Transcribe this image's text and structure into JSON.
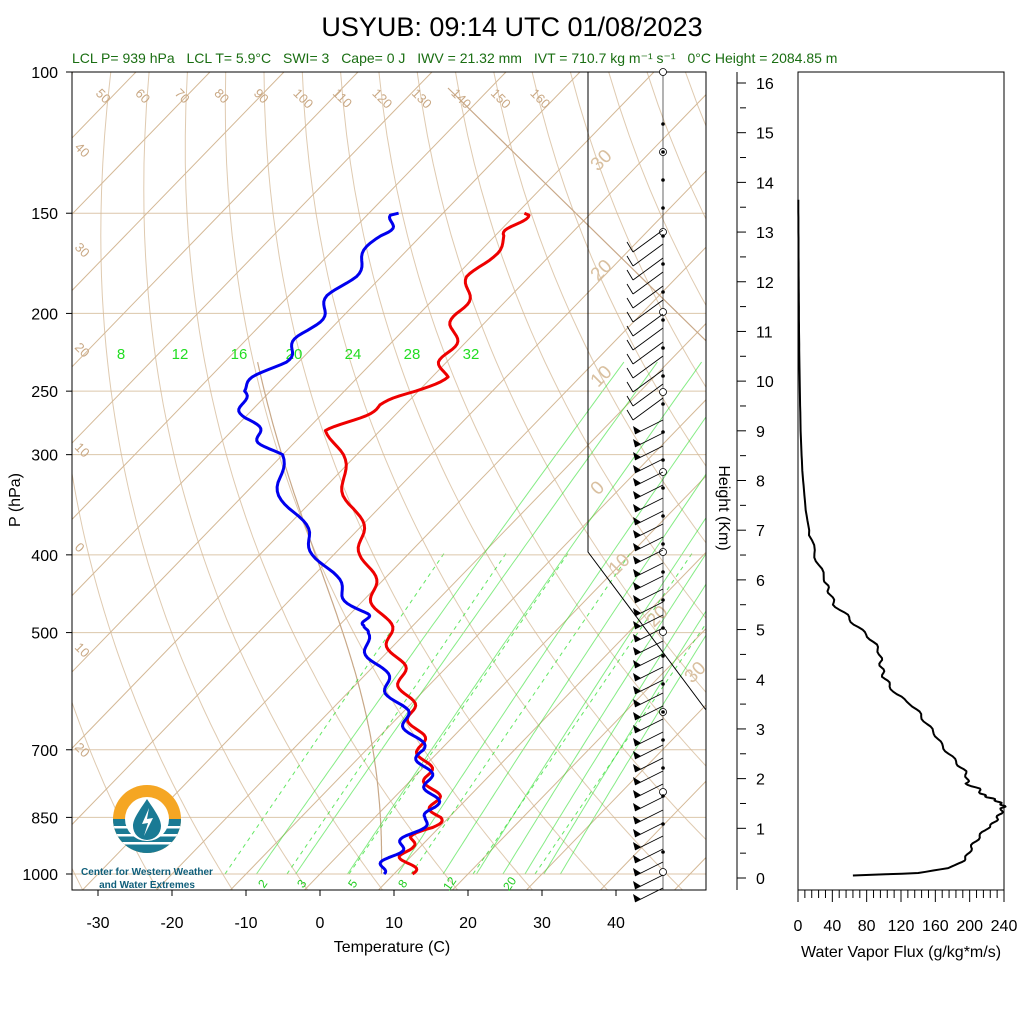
{
  "title": "USYUB: 09:14 UTC 01/08/2023",
  "subtitle": {
    "lcl_p": "LCL P= 939 hPa",
    "lcl_t": "LCL T= 5.9°C",
    "swi": "SWI= 3",
    "cape": "Cape= 0 J",
    "iwv": "IWV = 21.32 mm",
    "ivt": "IVT = 710.7 kg m⁻¹ s⁻¹",
    "zero_c": "0°C Height = 2084.85 m"
  },
  "logo": {
    "line1": "Center for Western Weather",
    "line2": "and Water Extremes"
  },
  "colors": {
    "temperature": "#ee0000",
    "dewpoint": "#0000ee",
    "isotherm": "#d4b896",
    "mixing_ratio": "#22dd22",
    "flux": "#000000",
    "logo_orange": "#f5a623",
    "logo_teal": "#1a7a94"
  },
  "chart_data": [
    {
      "type": "line",
      "name": "skew-t",
      "xlabel": "Temperature (C)",
      "ylabel": "P (hPa)",
      "x_ticks": [
        "-30",
        "-20",
        "-10",
        "0",
        "10",
        "20",
        "30",
        "40"
      ],
      "y_ticks": [
        "100",
        "150",
        "200",
        "250",
        "300",
        "400",
        "500",
        "700",
        "850",
        "1000"
      ],
      "isotherm_labels": [
        "50",
        "60",
        "70",
        "80",
        "90",
        "100",
        "110",
        "120",
        "130",
        "140",
        "150",
        "160",
        "40",
        "30",
        "20",
        "10",
        "0",
        "10",
        "20"
      ],
      "mixing_ratio_top_labels": [
        "8",
        "12",
        "16",
        "20",
        "24",
        "28",
        "32"
      ],
      "mixing_ratio_bottom_labels": [
        "2",
        "3",
        "5",
        "8",
        "12",
        "20"
      ],
      "dry_adiabat_labels": [
        "30",
        "20",
        "10",
        "0",
        "10",
        "20",
        "30"
      ],
      "series": [
        {
          "name": "Temperature",
          "p": [
            1000,
            975,
            950,
            925,
            900,
            875,
            850,
            825,
            800,
            775,
            750,
            725,
            700,
            675,
            650,
            625,
            600,
            575,
            550,
            525,
            500,
            475,
            450,
            425,
            400,
            375,
            350,
            325,
            300,
            280,
            270,
            260,
            250,
            240,
            230,
            220,
            210,
            200,
            190,
            180,
            170,
            160,
            155,
            150
          ],
          "t": [
            12.5,
            10.8,
            9.2,
            8.2,
            8.0,
            9.0,
            8.5,
            6.8,
            5.2,
            3.4,
            1.4,
            -0.6,
            -2.4,
            -4.6,
            -6.8,
            -9.2,
            -11.6,
            -14.0,
            -16.6,
            -19.4,
            -22.4,
            -25.6,
            -29.0,
            -32.4,
            -35.6,
            -39.4,
            -43.4,
            -47.8,
            -52.6,
            -56.5,
            -55.0,
            -53.2,
            -50.0,
            -48.6,
            -50.2,
            -51.6,
            -53.0,
            -54.8,
            -56.2,
            -57.6,
            -58.2,
            -58.4,
            -58.6,
            -59.0
          ]
        },
        {
          "name": "Dewpoint",
          "p": [
            1000,
            975,
            950,
            925,
            900,
            875,
            850,
            825,
            800,
            775,
            750,
            725,
            700,
            675,
            650,
            625,
            600,
            575,
            550,
            525,
            500,
            490,
            480,
            470,
            450,
            425,
            400,
            375,
            350,
            325,
            300,
            290,
            280,
            270,
            260,
            250,
            240,
            230,
            220,
            210,
            200,
            190,
            180,
            170,
            160,
            155,
            150
          ],
          "t": [
            7.8,
            7.6,
            7.4,
            7.2,
            7.2,
            7.2,
            7.4,
            6.6,
            5.0,
            3.2,
            1.2,
            -0.8,
            -2.6,
            -5.2,
            -7.8,
            -10.4,
            -13.4,
            -16.4,
            -19.4,
            -22.8,
            -26.0,
            -25.8,
            -27.6,
            -28.8,
            -33.0,
            -37.6,
            -42.0,
            -46.8,
            -52.0,
            -56.6,
            -60.8,
            -64.0,
            -66.8,
            -69.6,
            -71.8,
            -74.2,
            -73.4,
            -72.4,
            -72.6,
            -72.8,
            -73.4,
            -74.0,
            -74.2,
            -74.8,
            -75.4,
            -75.8,
            -76.0
          ]
        }
      ],
      "wind_barbs": "profile shown at right edge of skew-t"
    },
    {
      "type": "line",
      "name": "water-vapor-flux",
      "xlabel": "Water Vapor Flux (g/kg*m/s)",
      "ylabel": "Height (Km)",
      "x_ticks": [
        "0",
        "40",
        "80",
        "120",
        "160",
        "200",
        "240"
      ],
      "y_ticks": [
        "0",
        "1",
        "2",
        "3",
        "4",
        "5",
        "6",
        "7",
        "8",
        "9",
        "10",
        "11",
        "12",
        "13",
        "14",
        "15",
        "16"
      ],
      "xlim": [
        0,
        240
      ],
      "ylim": [
        -0.2,
        16.3
      ],
      "series": [
        {
          "name": "Flux",
          "h": [
            0.05,
            0.1,
            0.2,
            0.3,
            0.4,
            0.55,
            0.7,
            0.85,
            1.0,
            1.1,
            1.2,
            1.3,
            1.4,
            1.45,
            1.5,
            1.55,
            1.6,
            1.65,
            1.7,
            1.8,
            1.9,
            2.0,
            2.15,
            2.3,
            2.5,
            2.7,
            2.9,
            3.1,
            3.3,
            3.5,
            3.7,
            3.9,
            4.05,
            4.2,
            4.35,
            4.5,
            4.7,
            4.9,
            5.1,
            5.3,
            5.5,
            5.7,
            5.85,
            6.0,
            6.3,
            6.6,
            7.0,
            7.4,
            7.8,
            8.2,
            8.6,
            9.0,
            9.5,
            10.0,
            10.5,
            11.0,
            11.5,
            12.0,
            12.5,
            13.0,
            13.4,
            13.65
          ],
          "f": [
            64,
            140,
            175,
            188,
            196,
            200,
            205,
            212,
            220,
            228,
            232,
            236,
            238,
            240,
            236,
            232,
            226,
            218,
            214,
            210,
            196,
            198,
            194,
            186,
            176,
            166,
            160,
            150,
            142,
            132,
            114,
            106,
            100,
            98,
            96,
            96,
            90,
            80,
            66,
            56,
            42,
            38,
            34,
            32,
            24,
            18,
            13,
            9,
            7,
            5,
            4,
            3,
            2.5,
            2,
            1.5,
            1.2,
            1,
            0.8,
            0.6,
            0.5,
            0.4,
            0.3
          ]
        }
      ]
    }
  ]
}
